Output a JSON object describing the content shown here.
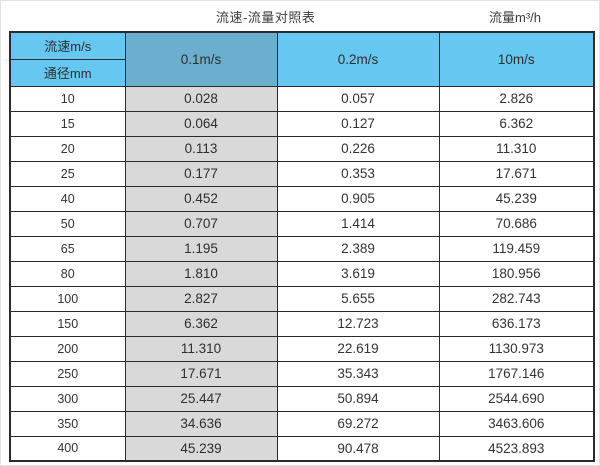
{
  "page": {
    "title_left": "流速-流量对照表",
    "title_right": "流量m³/h"
  },
  "table": {
    "corner_top": "流速m/s",
    "corner_bottom": "通径mm",
    "velocity_columns": [
      "0.1m/s",
      "0.2m/s",
      "10m/s"
    ],
    "rows": [
      {
        "diameter": "10",
        "values": [
          "0.028",
          "0.057",
          "2.826"
        ]
      },
      {
        "diameter": "15",
        "values": [
          "0.064",
          "0.127",
          "6.362"
        ]
      },
      {
        "diameter": "20",
        "values": [
          "0.113",
          "0.226",
          "11.310"
        ]
      },
      {
        "diameter": "25",
        "values": [
          "0.177",
          "0.353",
          "17.671"
        ]
      },
      {
        "diameter": "40",
        "values": [
          "0.452",
          "0.905",
          "45.239"
        ]
      },
      {
        "diameter": "50",
        "values": [
          "0.707",
          "1.414",
          "70.686"
        ]
      },
      {
        "diameter": "65",
        "values": [
          "1.195",
          "2.389",
          "119.459"
        ]
      },
      {
        "diameter": "80",
        "values": [
          "1.810",
          "3.619",
          "180.956"
        ]
      },
      {
        "diameter": "100",
        "values": [
          "2.827",
          "5.655",
          "282.743"
        ]
      },
      {
        "diameter": "150",
        "values": [
          "6.362",
          "12.723",
          "636.173"
        ]
      },
      {
        "diameter": "200",
        "values": [
          "11.310",
          "22.619",
          "1130.973"
        ]
      },
      {
        "diameter": "250",
        "values": [
          "17.671",
          "35.343",
          "1767.146"
        ]
      },
      {
        "diameter": "300",
        "values": [
          "25.447",
          "50.894",
          "2544.690"
        ]
      },
      {
        "diameter": "350",
        "values": [
          "34.636",
          "69.272",
          "3463.606"
        ]
      },
      {
        "diameter": "400",
        "values": [
          "45.239",
          "90.478",
          "4523.893"
        ]
      }
    ]
  },
  "colors": {
    "header_blue": "#66c7f0",
    "header_dark_blue": "#6caecd",
    "gray_column": "#d9d9d9",
    "border": "#2b2b2b"
  },
  "chart_data": {
    "type": "table",
    "title": "流速-流量对照表",
    "unit_label": "流量m³/h",
    "columns": [
      "通径mm",
      "0.1m/s",
      "0.2m/s",
      "10m/s"
    ],
    "rows": [
      [
        10,
        0.028,
        0.057,
        2.826
      ],
      [
        15,
        0.064,
        0.127,
        6.362
      ],
      [
        20,
        0.113,
        0.226,
        11.31
      ],
      [
        25,
        0.177,
        0.353,
        17.671
      ],
      [
        40,
        0.452,
        0.905,
        45.239
      ],
      [
        50,
        0.707,
        1.414,
        70.686
      ],
      [
        65,
        1.195,
        2.389,
        119.459
      ],
      [
        80,
        1.81,
        3.619,
        180.956
      ],
      [
        100,
        2.827,
        5.655,
        282.743
      ],
      [
        150,
        6.362,
        12.723,
        636.173
      ],
      [
        200,
        11.31,
        22.619,
        1130.973
      ],
      [
        250,
        17.671,
        35.343,
        1767.146
      ],
      [
        300,
        25.447,
        50.894,
        2544.69
      ],
      [
        350,
        34.636,
        69.272,
        3463.606
      ],
      [
        400,
        45.239,
        90.478,
        4523.893
      ]
    ]
  }
}
